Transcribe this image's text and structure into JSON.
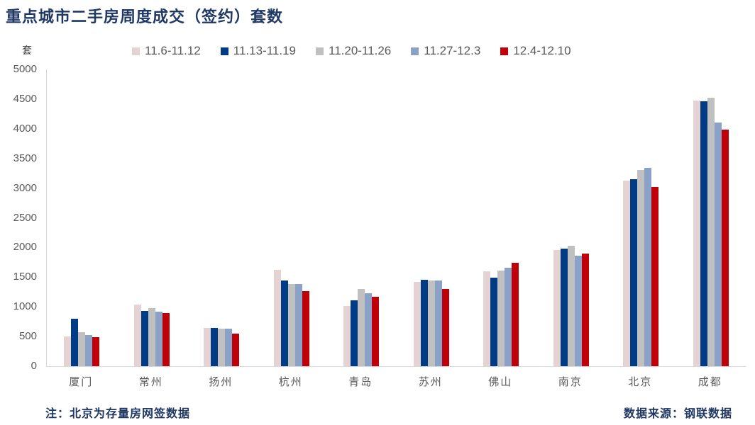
{
  "title": "重点城市二手房周度成交（签约）套数",
  "unit_label": "套",
  "footer": {
    "note": "注：北京为存量房网签数据",
    "source": "数据来源：钢联数据"
  },
  "colors": {
    "title_navy": "#1F3864",
    "axis_line": "#D9D9D9",
    "tick_text": "#595959",
    "background": "#FFFFFF"
  },
  "chart_data": {
    "type": "bar",
    "title": "重点城市二手房周度成交（签约）套数",
    "ylabel": "套",
    "xlabel": "",
    "ylim": [
      0,
      5000
    ],
    "ytick_step": 500,
    "grid": false,
    "legend_position": "top",
    "categories": [
      "厦门",
      "常州",
      "扬州",
      "杭州",
      "青岛",
      "苏州",
      "佛山",
      "南京",
      "北京",
      "成都"
    ],
    "series": [
      {
        "name": "11.6-11.12",
        "color": "#E5D3D3",
        "values": [
          505,
          1040,
          640,
          1620,
          1010,
          1425,
          1600,
          1960,
          3130,
          4470
        ]
      },
      {
        "name": "11.13-11.19",
        "color": "#003B85",
        "values": [
          795,
          935,
          645,
          1445,
          1110,
          1460,
          1490,
          1985,
          3155,
          4460
        ]
      },
      {
        "name": "11.20-11.26",
        "color": "#C0C0C1",
        "values": [
          570,
          980,
          630,
          1380,
          1305,
          1445,
          1615,
          2030,
          3300,
          4520
        ]
      },
      {
        "name": "11.27-12.3",
        "color": "#8AA2C8",
        "values": [
          525,
          925,
          635,
          1390,
          1230,
          1450,
          1660,
          1860,
          3340,
          4110
        ]
      },
      {
        "name": "12.4-12.10",
        "color": "#C00008",
        "values": [
          490,
          900,
          550,
          1270,
          1165,
          1295,
          1745,
          1900,
          3020,
          3990
        ]
      }
    ]
  }
}
